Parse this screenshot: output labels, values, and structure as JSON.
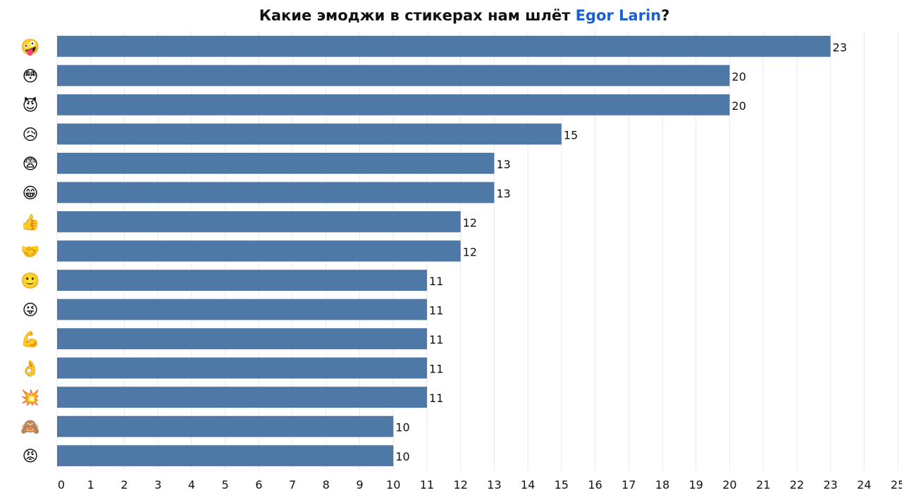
{
  "chart_data": {
    "type": "bar",
    "orientation": "horizontal",
    "title_prefix": "Какие эмоджи в стикерах нам шлёт ",
    "title_name": "Egor Larin",
    "title_suffix": "?",
    "categories": [
      "🤪",
      "😳",
      "😈",
      "😥",
      "😨",
      "😁",
      "👍",
      "🤝",
      "🙂",
      "😜",
      "💪",
      "👌",
      "💥",
      "🙈",
      "😡"
    ],
    "values": [
      23,
      20,
      20,
      15,
      13,
      13,
      12,
      12,
      11,
      11,
      11,
      11,
      11,
      10,
      10
    ],
    "xlim": [
      0,
      25
    ],
    "xticks": [
      0,
      1,
      2,
      3,
      4,
      5,
      6,
      7,
      8,
      9,
      10,
      11,
      12,
      13,
      14,
      15,
      16,
      17,
      18,
      19,
      20,
      21,
      22,
      23,
      24,
      25
    ],
    "grid": true,
    "colors": {
      "bar": "#4e79a7",
      "title_name": "#1a5fd6",
      "grid": "#e9e9e9"
    }
  }
}
